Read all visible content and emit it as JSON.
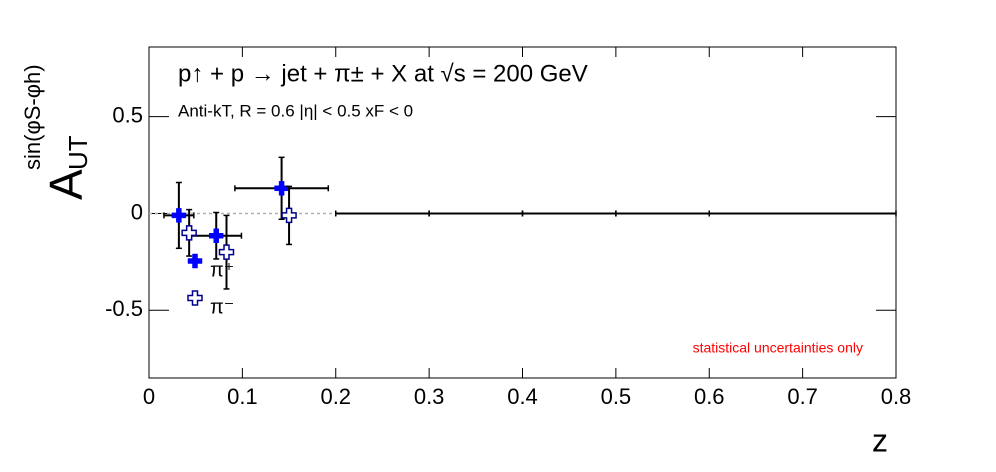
{
  "chart_data": {
    "type": "scatter",
    "title": "p↑ + p → jet + π± + X at √s = 200 GeV",
    "subtitle": "Anti-kT, R = 0.6   |η| < 0.5   xF < 0",
    "xlabel": "z",
    "ylabel": {
      "base": "A",
      "sub": "UT",
      "sup": "sin(φS-φh)"
    },
    "annotation": "statistical uncertainties only",
    "annotation_color": "#ff0000",
    "xlim": [
      0,
      0.8
    ],
    "xticks": [
      0,
      0.1,
      0.2,
      0.3,
      0.4,
      0.5,
      0.6,
      0.7,
      0.8
    ],
    "ylim": [
      -0.85,
      0.86
    ],
    "yticks": [
      -0.5,
      0,
      0.5
    ],
    "zero_line": true,
    "legend": "bottom-left",
    "series": [
      {
        "name": "π⁺",
        "color": "#0000ff",
        "marker": "plus",
        "x": [
          0.032,
          0.072,
          0.142
        ],
        "values": [
          -0.01,
          -0.115,
          0.13
        ],
        "xerr": [
          0.016,
          0.027,
          0.05
        ],
        "yerr": [
          0.17,
          0.12,
          0.16
        ]
      },
      {
        "name": "π⁻",
        "color": "#00008b",
        "marker": "open-plus",
        "x": [
          0.043,
          0.083,
          0.15
        ],
        "values": [
          -0.1,
          -0.2,
          -0.01
        ],
        "xerr": [
          0,
          0,
          0
        ],
        "yerr": [
          0.12,
          0.19,
          0.15
        ]
      },
      {
        "color": "#000000",
        "marker": "none",
        "x": [
          0.25,
          0.35,
          0.45,
          0.55,
          0.7
        ],
        "values": [
          0,
          0,
          0,
          0,
          0
        ],
        "xerr": [
          0.05,
          0.05,
          0.05,
          0.05,
          0.1
        ],
        "yerr": [
          0,
          0,
          0,
          0,
          0
        ]
      }
    ]
  }
}
